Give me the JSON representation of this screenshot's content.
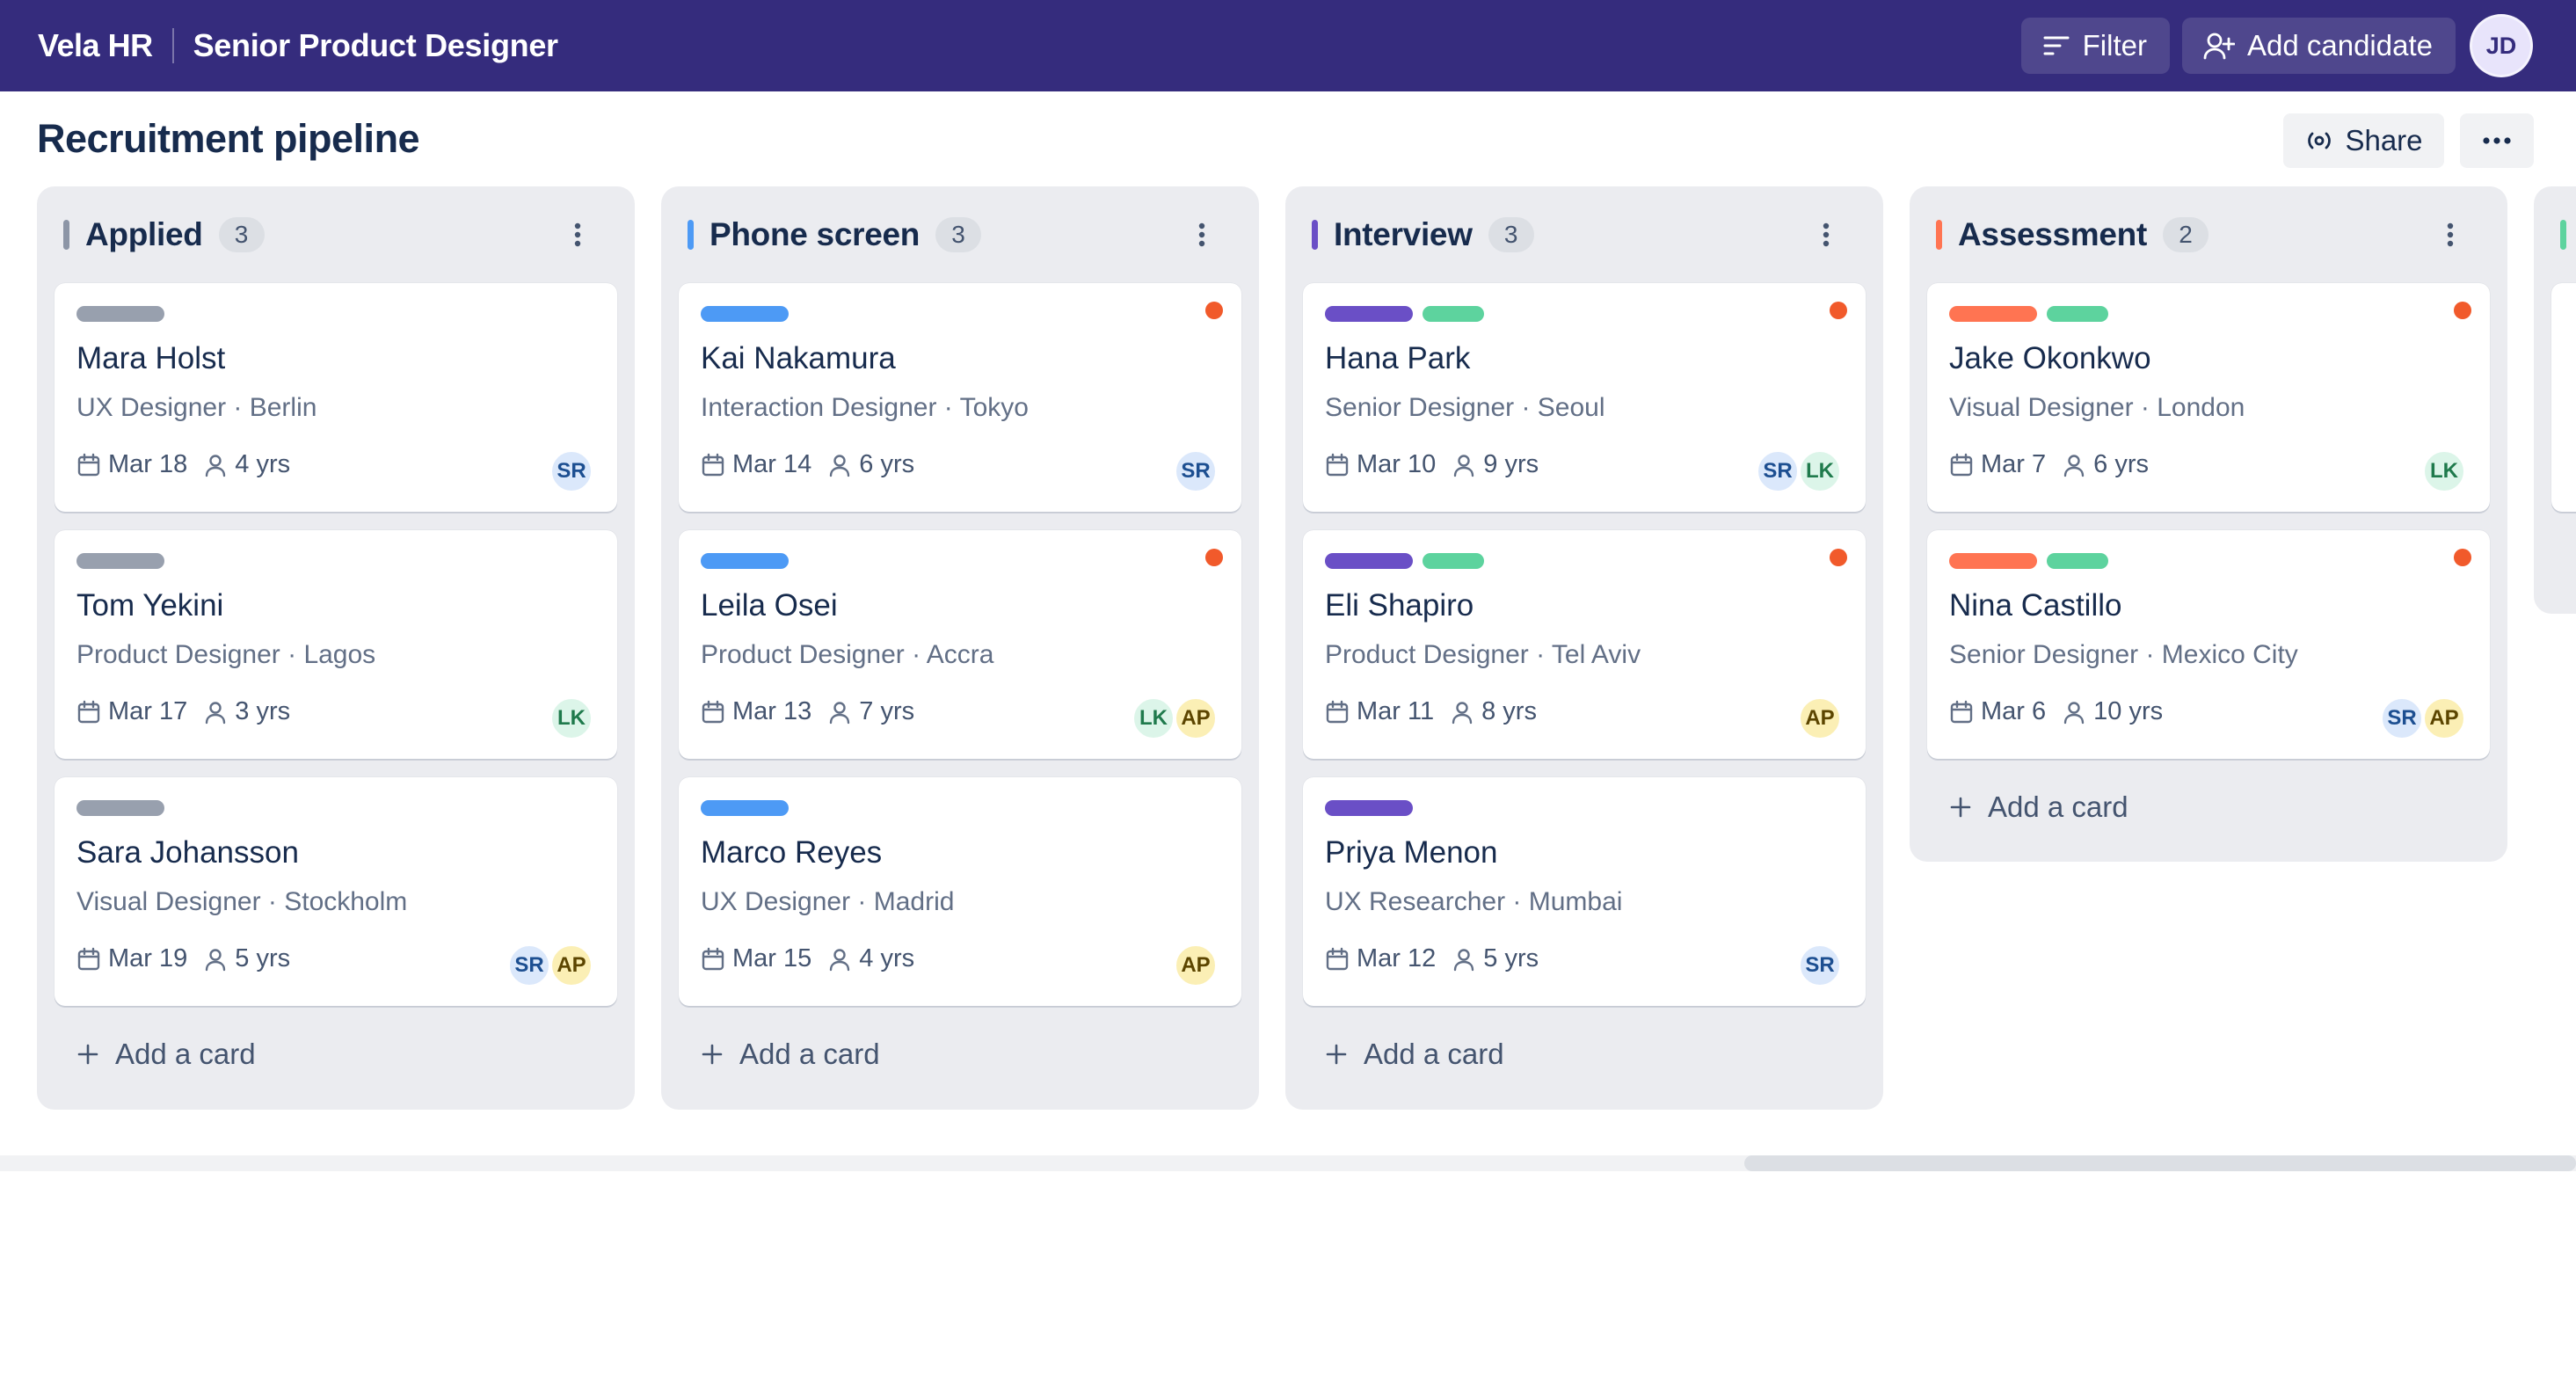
{
  "topbar": {
    "brand": "Vela HR",
    "job_title": "Senior Product Designer",
    "filter_label": "Filter",
    "add_candidate_label": "Add candidate",
    "user_initials": "JD"
  },
  "page": {
    "title": "Recruitment pipeline",
    "share_label": "Share"
  },
  "colors": {
    "topbar": "#352c7d",
    "flag": "#f15a2b",
    "label_gray": "#98a0ae",
    "label_blue": "#4d9af5",
    "label_purple": "#6a4fc6",
    "label_green": "#5dd39e",
    "label_orange": "#ff7452"
  },
  "columns": [
    {
      "title": "Applied",
      "count": "3",
      "accent": "#8c95a6",
      "add_label": "Add a card",
      "cards": [
        {
          "name": "Mara Holst",
          "role": "UX Designer · Berlin",
          "date": "Mar 18",
          "exp": "4 yrs",
          "labels": [
            "label_gray"
          ],
          "flag": false,
          "assignees": [
            "SR"
          ]
        },
        {
          "name": "Tom Yekini",
          "role": "Product Designer · Lagos",
          "date": "Mar 17",
          "exp": "3 yrs",
          "labels": [
            "label_gray"
          ],
          "flag": false,
          "assignees": [
            "LK"
          ]
        },
        {
          "name": "Sara Johansson",
          "role": "Visual Designer · Stockholm",
          "date": "Mar 19",
          "exp": "5 yrs",
          "labels": [
            "label_gray"
          ],
          "flag": false,
          "assignees": [
            "SR",
            "AP"
          ]
        }
      ]
    },
    {
      "title": "Phone screen",
      "count": "3",
      "accent": "#4d9af5",
      "add_label": "Add a card",
      "cards": [
        {
          "name": "Kai Nakamura",
          "role": "Interaction Designer · Tokyo",
          "date": "Mar 14",
          "exp": "6 yrs",
          "labels": [
            "label_blue"
          ],
          "flag": true,
          "assignees": [
            "SR"
          ]
        },
        {
          "name": "Leila Osei",
          "role": "Product Designer · Accra",
          "date": "Mar 13",
          "exp": "7 yrs",
          "labels": [
            "label_blue"
          ],
          "flag": true,
          "assignees": [
            "LK",
            "AP"
          ]
        },
        {
          "name": "Marco Reyes",
          "role": "UX Designer · Madrid",
          "date": "Mar 15",
          "exp": "4 yrs",
          "labels": [
            "label_blue"
          ],
          "flag": false,
          "assignees": [
            "AP"
          ]
        }
      ]
    },
    {
      "title": "Interview",
      "count": "3",
      "accent": "#6a4fc6",
      "add_label": "Add a card",
      "cards": [
        {
          "name": "Hana Park",
          "role": "Senior Designer · Seoul",
          "date": "Mar 10",
          "exp": "9 yrs",
          "labels": [
            "label_purple",
            "label_green"
          ],
          "flag": true,
          "assignees": [
            "SR",
            "LK"
          ]
        },
        {
          "name": "Eli Shapiro",
          "role": "Product Designer · Tel Aviv",
          "date": "Mar 11",
          "exp": "8 yrs",
          "labels": [
            "label_purple",
            "label_green"
          ],
          "flag": true,
          "assignees": [
            "AP"
          ]
        },
        {
          "name": "Priya Menon",
          "role": "UX Researcher · Mumbai",
          "date": "Mar 12",
          "exp": "5 yrs",
          "labels": [
            "label_purple"
          ],
          "flag": false,
          "assignees": [
            "SR"
          ]
        }
      ]
    },
    {
      "title": "Assessment",
      "count": "2",
      "accent": "#ff7452",
      "add_label": "Add a card",
      "cards": [
        {
          "name": "Jake Okonkwo",
          "role": "Visual Designer · London",
          "date": "Mar 7",
          "exp": "6 yrs",
          "labels": [
            "label_orange",
            "label_green"
          ],
          "flag": true,
          "assignees": [
            "LK"
          ]
        },
        {
          "name": "Nina Castillo",
          "role": "Senior Designer · Mexico City",
          "date": "Mar 6",
          "exp": "10 yrs",
          "labels": [
            "label_orange",
            "label_green"
          ],
          "flag": true,
          "assignees": [
            "SR",
            "AP"
          ]
        }
      ]
    },
    {
      "title": "",
      "count": "",
      "accent": "#5dd39e",
      "add_label": "",
      "cards": [
        {
          "name": "",
          "role": "",
          "date": "",
          "exp": "",
          "labels": [],
          "flag": false,
          "assignees": []
        }
      ]
    }
  ]
}
